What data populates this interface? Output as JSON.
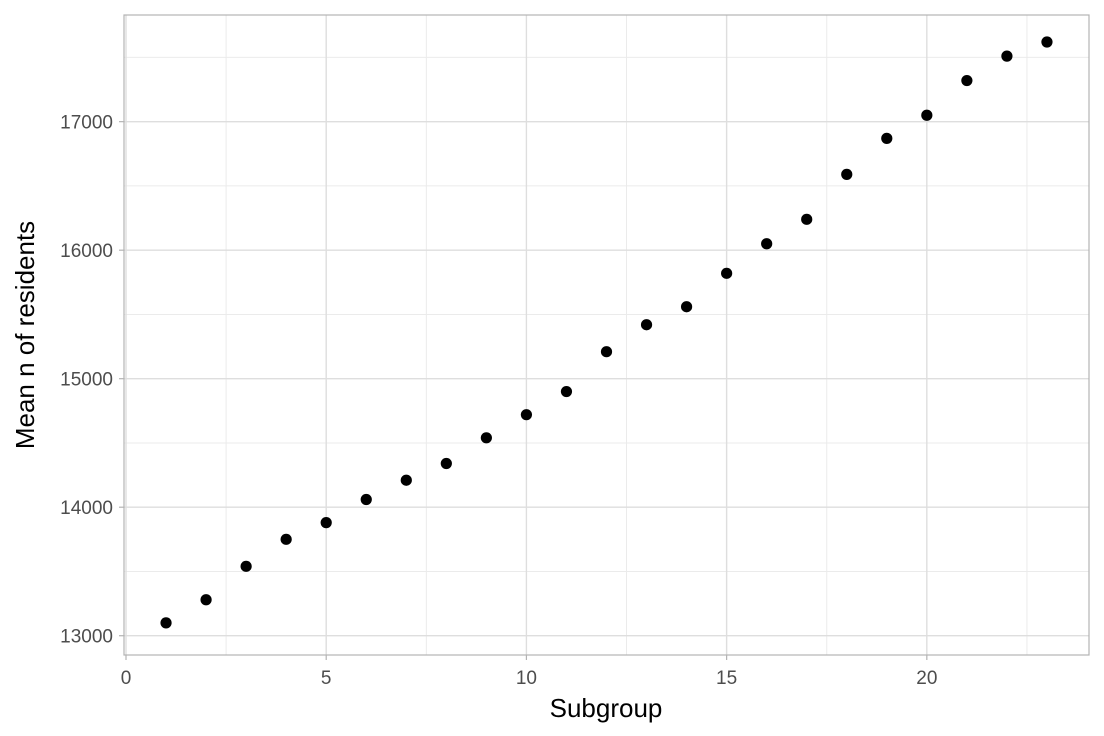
{
  "chart_data": {
    "type": "scatter",
    "title": "",
    "xlabel": "Subgroup",
    "ylabel": "Mean n of residents",
    "xlim": [
      -0.05,
      24.05
    ],
    "ylim": [
      12850,
      17830
    ],
    "x_ticks": [
      0,
      5,
      10,
      15,
      20
    ],
    "y_ticks": [
      13000,
      14000,
      15000,
      16000,
      17000
    ],
    "x_minor_ticks": [
      2.5,
      7.5,
      12.5,
      17.5,
      22.5
    ],
    "y_minor_ticks": [
      13500,
      14500,
      15500,
      16500,
      17500
    ],
    "grid": true,
    "theme": "light",
    "point_color": "#000000",
    "points": [
      {
        "x": 1,
        "y": 13100
      },
      {
        "x": 2,
        "y": 13280
      },
      {
        "x": 3,
        "y": 13540
      },
      {
        "x": 4,
        "y": 13750
      },
      {
        "x": 5,
        "y": 13880
      },
      {
        "x": 6,
        "y": 14060
      },
      {
        "x": 7,
        "y": 14210
      },
      {
        "x": 8,
        "y": 14340
      },
      {
        "x": 9,
        "y": 14540
      },
      {
        "x": 10,
        "y": 14720
      },
      {
        "x": 11,
        "y": 14900
      },
      {
        "x": 12,
        "y": 15210
      },
      {
        "x": 13,
        "y": 15420
      },
      {
        "x": 14,
        "y": 15560
      },
      {
        "x": 15,
        "y": 15820
      },
      {
        "x": 16,
        "y": 16050
      },
      {
        "x": 17,
        "y": 16240
      },
      {
        "x": 18,
        "y": 16590
      },
      {
        "x": 19,
        "y": 16870
      },
      {
        "x": 20,
        "y": 17050
      },
      {
        "x": 21,
        "y": 17320
      },
      {
        "x": 22,
        "y": 17510
      },
      {
        "x": 23,
        "y": 17620
      }
    ]
  }
}
